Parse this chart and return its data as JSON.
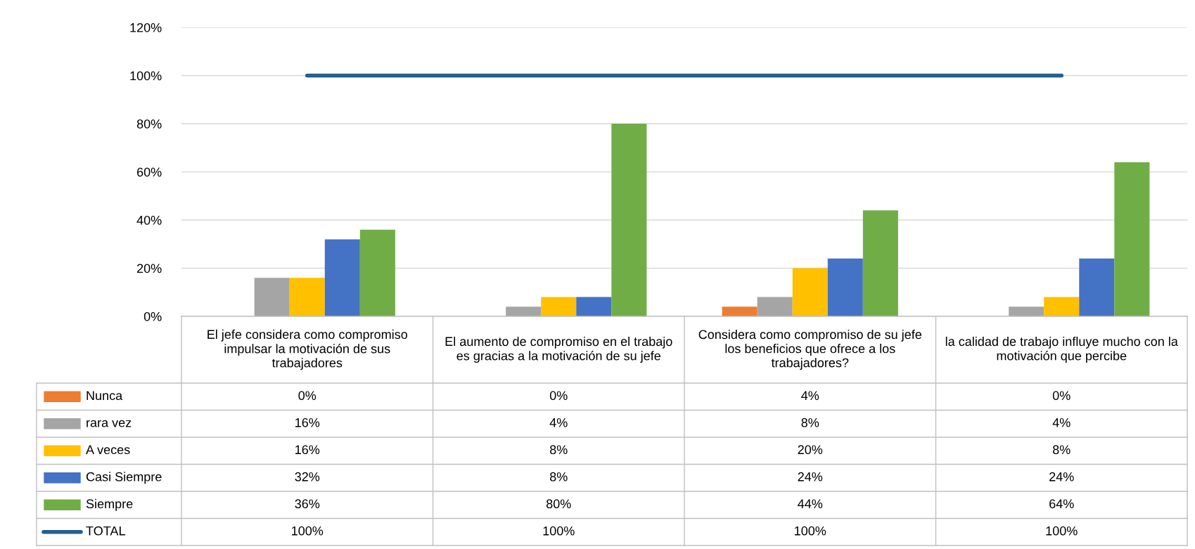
{
  "chart_data": {
    "type": "bar",
    "categories": [
      "El jefe considera como compromiso impulsar la motivación de sus trabajadores",
      "El aumento de compromiso en el trabajo es gracias a la motivación de su jefe",
      "Considera como compromiso de su jefe los beneficios que ofrece a los trabajadores?",
      "la calidad de trabajo influye mucho con la motivación que percibe"
    ],
    "series": [
      {
        "name": "Nunca",
        "color": "#ed7d31",
        "values": [
          0,
          0,
          4,
          0
        ],
        "value_labels": [
          "0%",
          "0%",
          "4%",
          "0%"
        ]
      },
      {
        "name": "rara vez",
        "color": "#a5a5a5",
        "values": [
          16,
          4,
          8,
          4
        ],
        "value_labels": [
          "16%",
          "4%",
          "8%",
          "4%"
        ]
      },
      {
        "name": "A veces",
        "color": "#ffc000",
        "values": [
          16,
          8,
          20,
          8
        ],
        "value_labels": [
          "16%",
          "8%",
          "20%",
          "8%"
        ]
      },
      {
        "name": "Casi Siempre",
        "color": "#4472c4",
        "values": [
          32,
          8,
          24,
          24
        ],
        "value_labels": [
          "32%",
          "8%",
          "24%",
          "24%"
        ]
      },
      {
        "name": "Siempre",
        "color": "#70ad47",
        "values": [
          36,
          80,
          44,
          64
        ],
        "value_labels": [
          "36%",
          "80%",
          "44%",
          "64%"
        ]
      },
      {
        "name": "TOTAL",
        "type": "line",
        "color": "#255e91",
        "values": [
          100,
          100,
          100,
          100
        ],
        "value_labels": [
          "100%",
          "100%",
          "100%",
          "100%"
        ]
      }
    ],
    "ylim": [
      0,
      120
    ],
    "yticks": [
      {
        "value": 0,
        "label": "0%"
      },
      {
        "value": 20,
        "label": "20%"
      },
      {
        "value": 40,
        "label": "40%"
      },
      {
        "value": 60,
        "label": "60%"
      },
      {
        "value": 80,
        "label": "80%"
      },
      {
        "value": 100,
        "label": "100%"
      },
      {
        "value": 120,
        "label": "120%"
      }
    ],
    "grid": "y",
    "legend": "bottom"
  }
}
